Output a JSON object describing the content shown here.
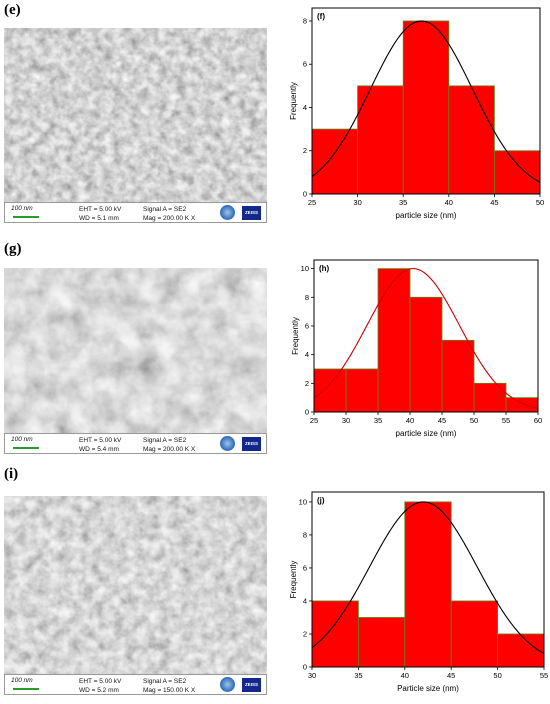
{
  "labels": {
    "e": "(e)",
    "g": "(g)",
    "i": "(i)"
  },
  "sem": [
    {
      "scale": "100 nm",
      "eht": "EHT = 5.00 kV",
      "wd": "WD = 5.1 mm",
      "signal": "Signal A = SE2",
      "mag": "Mag = 200.00 K X",
      "brand": "ZEISS"
    },
    {
      "scale": "100 nm",
      "eht": "EHT = 5.00 kV",
      "wd": "WD = 5.4 mm",
      "signal": "Signal A = SE2",
      "mag": "Mag = 200.00 K X",
      "brand": "ZEISS"
    },
    {
      "scale": "100 nm",
      "eht": "EHT = 5.00 kV",
      "wd": "WD = 5.2 mm",
      "signal": "Signal A = SE2",
      "mag": "Mag = 150.00 K X",
      "brand": "ZEISS"
    }
  ],
  "chart_data": [
    {
      "type": "bar",
      "panel": "(f)",
      "xlabel": "particle size (nm)",
      "ylabel": "Frequently",
      "bin_edges": [
        25,
        30,
        35,
        40,
        45,
        50
      ],
      "values": [
        3,
        5,
        8,
        5,
        2
      ],
      "xlim": [
        25,
        50
      ],
      "ylim": [
        0,
        8.6
      ],
      "xticks": [
        25,
        30,
        35,
        40,
        45,
        50
      ],
      "yticks": [
        0,
        2,
        4,
        6,
        8
      ],
      "bar_color": "#ff0000",
      "bar_edge": "#5a8a1a",
      "fit": {
        "type": "gaussian",
        "mean": 37.0,
        "sigma": 5.6,
        "amplitude": 8.0,
        "color": "#000000"
      }
    },
    {
      "type": "bar",
      "panel": "(h)",
      "xlabel": "particle size (nm)",
      "ylabel": "Frequently",
      "bin_edges": [
        25,
        30,
        35,
        40,
        45,
        50,
        55,
        60
      ],
      "values": [
        3,
        3,
        10,
        8,
        5,
        2,
        1
      ],
      "xlim": [
        25,
        60
      ],
      "ylim": [
        0,
        10.6
      ],
      "xticks": [
        25,
        30,
        35,
        40,
        45,
        50,
        55,
        60
      ],
      "yticks": [
        0,
        2,
        4,
        6,
        8,
        10
      ],
      "bar_color": "#ff0000",
      "bar_edge": "#5a8a1a",
      "fit": {
        "type": "gaussian",
        "mean": 40.5,
        "sigma": 7.2,
        "amplitude": 10.0,
        "color": "#cc0000"
      }
    },
    {
      "type": "bar",
      "panel": "(j)",
      "xlabel": "Particle size (nm)",
      "ylabel": "Frequently",
      "bin_edges": [
        30,
        35,
        40,
        45,
        50,
        55
      ],
      "values": [
        4,
        3,
        10,
        4,
        2
      ],
      "xlim": [
        30,
        55
      ],
      "ylim": [
        0,
        10.6
      ],
      "xticks": [
        30,
        35,
        40,
        45,
        50,
        55
      ],
      "yticks": [
        0,
        2,
        4,
        6,
        8,
        10
      ],
      "bar_color": "#ff0000",
      "bar_edge": "#5a8a1a",
      "fit": {
        "type": "gaussian",
        "mean": 42.0,
        "sigma": 5.8,
        "amplitude": 10.0,
        "color": "#000000"
      }
    }
  ]
}
